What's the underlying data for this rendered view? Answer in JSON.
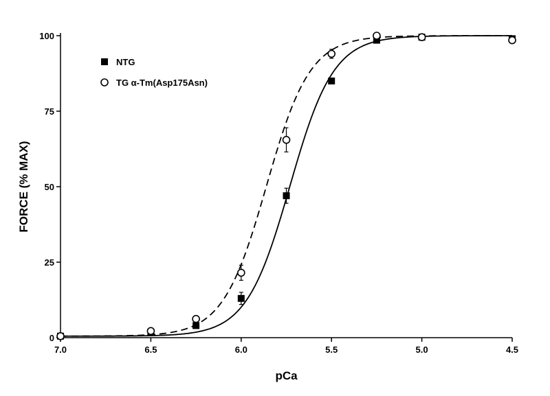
{
  "chart_data": {
    "type": "scatter",
    "title": "",
    "xlabel": "pCa",
    "ylabel": "FORCE (% MAX)",
    "xlim": [
      7.0,
      4.5
    ],
    "ylim": [
      0,
      100
    ],
    "x_ticks": [
      "7.0",
      "6.5",
      "6.0",
      "5.5",
      "5.0",
      "4.5"
    ],
    "y_ticks": [
      "0",
      "25",
      "50",
      "75",
      "100"
    ],
    "legend_position": "top-left",
    "grid": false,
    "series": [
      {
        "name": "NTG",
        "marker": "filled-square",
        "line": "solid",
        "color": "#000000",
        "pCa50": 5.73,
        "hill": 3.6,
        "points": [
          {
            "x": 7.0,
            "y": 0.5,
            "err": 0
          },
          {
            "x": 6.5,
            "y": 1.8,
            "err": 0.5
          },
          {
            "x": 6.25,
            "y": 4.0,
            "err": 0.8
          },
          {
            "x": 6.0,
            "y": 13.0,
            "err": 2.0
          },
          {
            "x": 5.75,
            "y": 47.0,
            "err": 2.5
          },
          {
            "x": 5.5,
            "y": 85.0,
            "err": 1.0
          },
          {
            "x": 5.25,
            "y": 98.5,
            "err": 0.5
          },
          {
            "x": 5.0,
            "y": 99.5,
            "err": 0
          },
          {
            "x": 4.5,
            "y": 99.0,
            "err": 0
          }
        ]
      },
      {
        "name": "TG α-Tm(Asp175Asn)",
        "marker": "open-circle",
        "line": "dashed",
        "color": "#000000",
        "pCa50": 5.86,
        "hill": 3.6,
        "points": [
          {
            "x": 7.0,
            "y": 0.5,
            "err": 0
          },
          {
            "x": 6.5,
            "y": 2.2,
            "err": 0.5
          },
          {
            "x": 6.25,
            "y": 6.2,
            "err": 0.8
          },
          {
            "x": 6.0,
            "y": 21.5,
            "err": 2.5
          },
          {
            "x": 5.75,
            "y": 65.5,
            "err": 4.0
          },
          {
            "x": 5.5,
            "y": 94.0,
            "err": 1.5
          },
          {
            "x": 5.25,
            "y": 100.0,
            "err": 0
          },
          {
            "x": 5.0,
            "y": 99.5,
            "err": 0
          },
          {
            "x": 4.5,
            "y": 98.5,
            "err": 0
          }
        ]
      }
    ]
  }
}
